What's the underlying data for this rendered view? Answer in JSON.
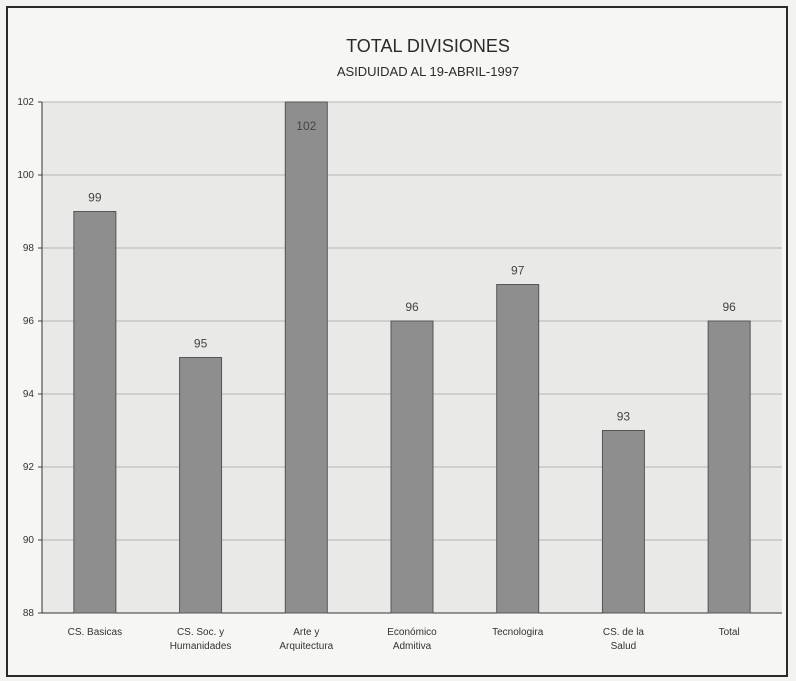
{
  "chart_data": {
    "type": "bar",
    "title": "TOTAL DIVISIONES",
    "subtitle": "ASIDUIDAD AL 19-ABRIL-1997",
    "categories": [
      [
        "CS. Basicas"
      ],
      [
        "CS. Soc. y",
        "Humanidades"
      ],
      [
        "Arte y",
        "Arquitectura"
      ],
      [
        "Económico",
        "Admitiva"
      ],
      [
        "Tecnologira"
      ],
      [
        "CS. de la",
        "Salud"
      ],
      [
        "Total"
      ]
    ],
    "values": [
      99,
      95,
      102,
      96,
      97,
      93,
      96
    ],
    "data_labels": [
      "99",
      "95",
      "102",
      "96",
      "97",
      "93",
      "96"
    ],
    "ylim": [
      88,
      102
    ],
    "yticks": [
      88,
      90,
      92,
      94,
      96,
      98,
      100,
      102
    ],
    "xlabel": "",
    "ylabel": "",
    "grid": true,
    "bar_color": "#8e8e8e",
    "grid_color": "#b5b5b5"
  }
}
